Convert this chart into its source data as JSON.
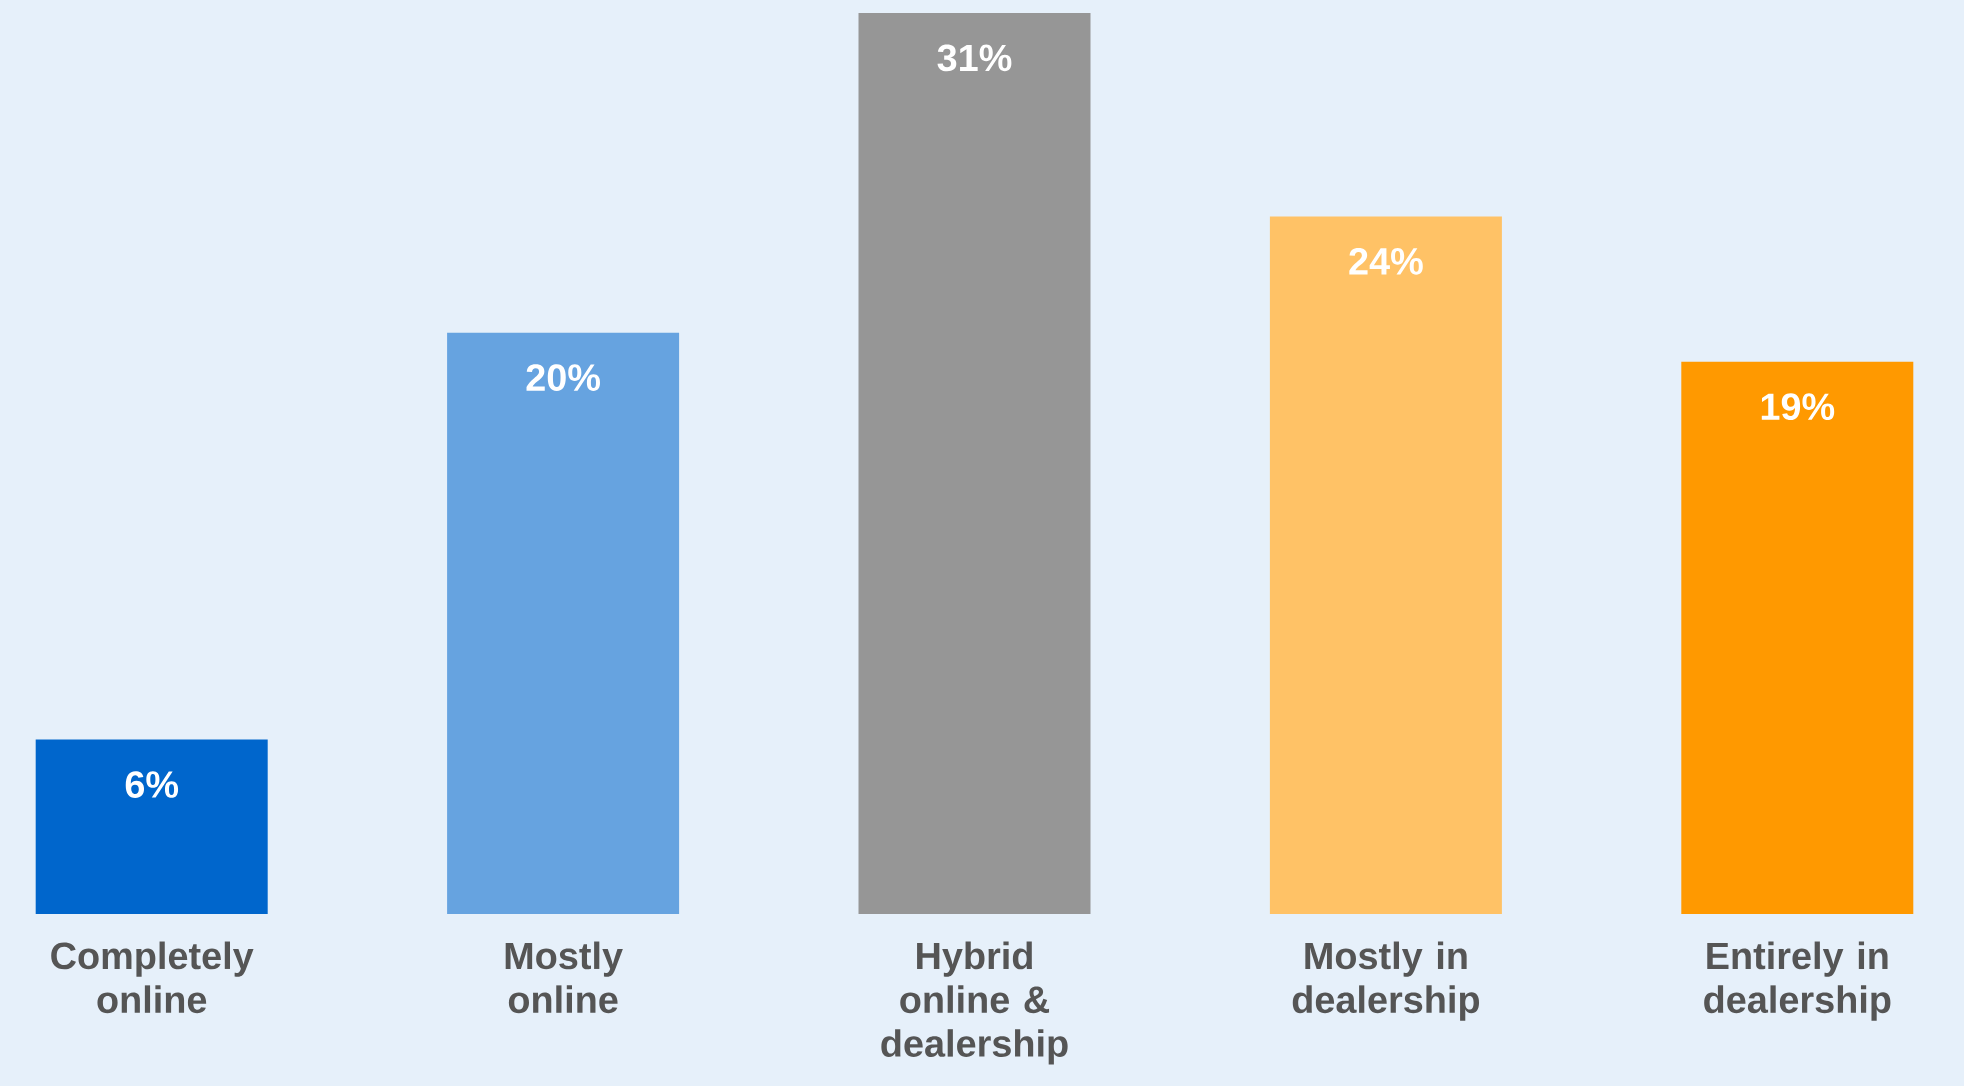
{
  "chart_data": {
    "type": "bar",
    "categories": [
      "Completely online",
      "Mostly online",
      "Hybrid online & dealership",
      "Mostly in dealership",
      "Entirely in dealership"
    ],
    "values": [
      6,
      20,
      31,
      24,
      19
    ],
    "value_labels": [
      "6%",
      "20%",
      "31%",
      "24%",
      "19%"
    ],
    "colors": [
      "#0066cc",
      "#66a3e0",
      "#969696",
      "#ffc266",
      "#ff9900"
    ]
  }
}
